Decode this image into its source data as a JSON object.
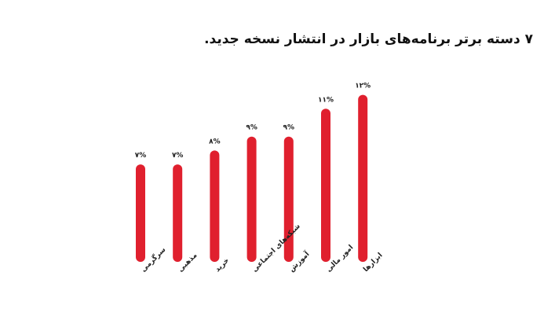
{
  "chart_data": {
    "type": "bar",
    "title": "۷ دسته برتر برنامه‌های بازار در انتشار نسخه جدید.",
    "categories": [
      "سرگرمی",
      "مذهبی",
      "خرید",
      "شبکه‌های اجتماعی",
      "آموزش",
      "امور مالی",
      "ابزارها"
    ],
    "values": [
      7,
      7,
      8,
      9,
      9,
      11,
      12
    ],
    "value_labels": [
      "۷%",
      "۷%",
      "۸%",
      "۹%",
      "۹%",
      "۱۱%",
      "۱۲%"
    ],
    "bar_color": "#e0202e",
    "grid": false,
    "legend": "none"
  }
}
